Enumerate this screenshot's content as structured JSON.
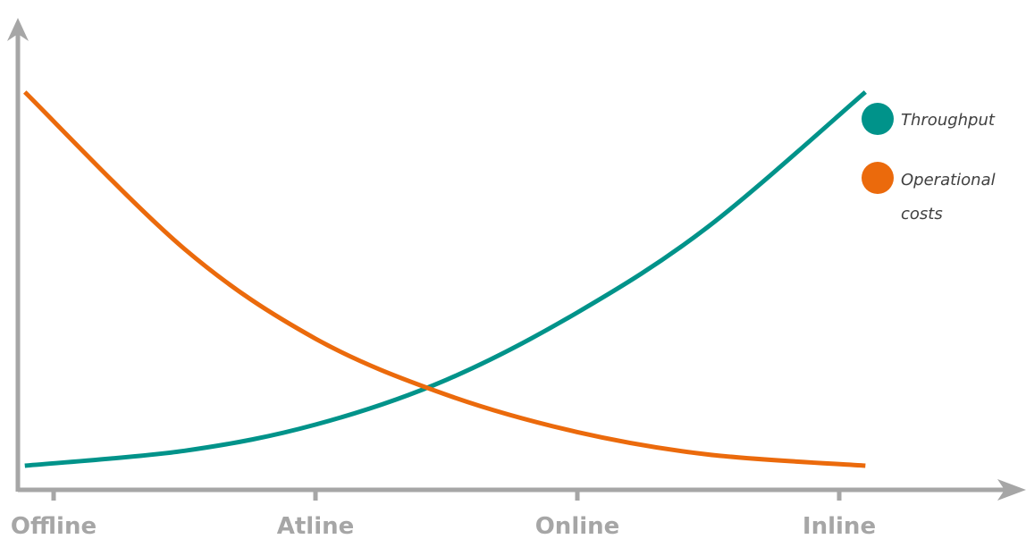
{
  "chart_data": {
    "type": "line",
    "title": "",
    "xlabel": "",
    "ylabel": "",
    "categories": [
      "Offline",
      "Atline",
      "Online",
      "Inline"
    ],
    "xlim": [
      0,
      3.2
    ],
    "ylim": [
      0,
      1
    ],
    "grid": false,
    "legend_position": "right",
    "series": [
      {
        "name": "Throughput",
        "color": "#00938a",
        "x": [
          -0.11,
          0.5,
          1.0,
          1.5,
          2.0,
          2.5,
          3.1
        ],
        "y": [
          0.0,
          0.04,
          0.11,
          0.23,
          0.41,
          0.64,
          1.0
        ]
      },
      {
        "name": "Operational costs",
        "color": "#eb6a0c",
        "x": [
          -0.11,
          0.5,
          1.0,
          1.5,
          2.0,
          2.5,
          3.1
        ],
        "y": [
          1.0,
          0.58,
          0.34,
          0.19,
          0.09,
          0.03,
          0.0
        ]
      }
    ],
    "legend": [
      {
        "label_lines": [
          "Throughput"
        ],
        "color": "#00938a"
      },
      {
        "label_lines": [
          "Operational",
          "costs"
        ],
        "color": "#eb6a0c"
      }
    ]
  },
  "colors": {
    "axis": "#a6a6a6"
  }
}
